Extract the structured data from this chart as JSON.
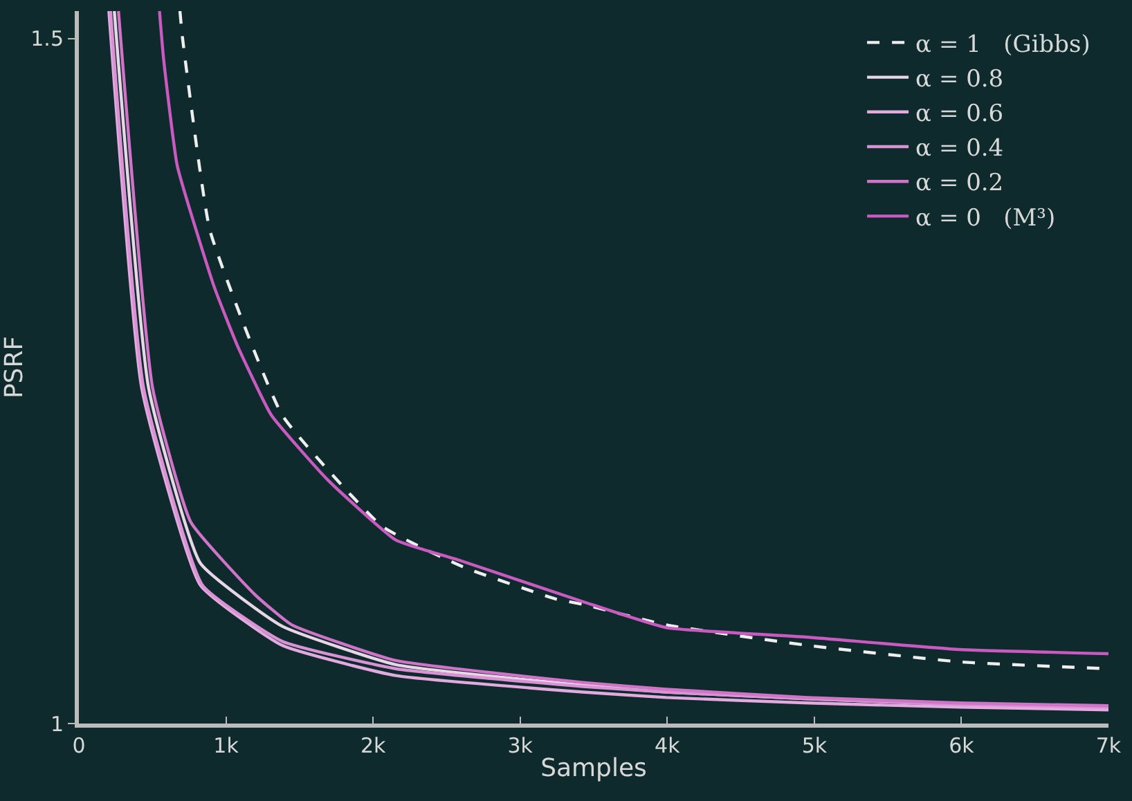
{
  "chart_data": {
    "type": "line",
    "xlabel": "Samples",
    "ylabel": "PSRF",
    "xlim": [
      0,
      7000
    ],
    "ylim": [
      1,
      1.52
    ],
    "xticks": [
      0,
      {
        "value": 1000,
        "label": "1k"
      },
      {
        "value": 2000,
        "label": "2k"
      },
      {
        "value": 3000,
        "label": "3k"
      },
      {
        "value": 4000,
        "label": "4k"
      },
      {
        "value": 5000,
        "label": "5k"
      },
      {
        "value": 6000,
        "label": "6k"
      },
      {
        "value": 7000,
        "label": "7k"
      }
    ],
    "yticks": [
      1,
      1.5
    ],
    "grid": false,
    "legend": "top right",
    "line_style": "solid",
    "series": [
      {
        "name": "α = 1   (Gibbs)",
        "color": "#eeeeee",
        "line_style": "dashed",
        "x": [
          687,
          705,
          891,
          1383,
          2061,
          2618,
          3240,
          3426,
          3993,
          4958,
          5989,
          7000
        ],
        "values": [
          1.52,
          1.5,
          1.36,
          1.225,
          1.144,
          1.114,
          1.091,
          1.087,
          1.072,
          1.057,
          1.045,
          1.04
        ]
      },
      {
        "name": "α = 0.8",
        "color": "#e6d6e6",
        "x": [
          241,
          474,
          826,
          1383,
          2154,
          3426,
          3993,
          4958,
          5989,
          7000
        ],
        "values": [
          1.52,
          1.245,
          1.117,
          1.071,
          1.043,
          1.028,
          1.023,
          1.018,
          1.014,
          1.012
        ]
      },
      {
        "name": "α = 0.6",
        "color": "#e2aade",
        "x": [
          204,
          427,
          826,
          1383,
          2154,
          3426,
          3993,
          4958,
          5989,
          7000
        ],
        "values": [
          1.52,
          1.245,
          1.101,
          1.057,
          1.035,
          1.023,
          1.019,
          1.015,
          1.012,
          1.01
        ]
      },
      {
        "name": "α = 0.4",
        "color": "#d992d4",
        "x": [
          215,
          440,
          840,
          1383,
          2154,
          3426,
          3993,
          4958,
          5989,
          7000
        ],
        "values": [
          1.52,
          1.245,
          1.101,
          1.06,
          1.04,
          1.027,
          1.023,
          1.018,
          1.014,
          1.012
        ]
      },
      {
        "name": "α = 0.2",
        "color": "#d074c8",
        "x": [
          269,
          501,
          761,
          1198,
          1448,
          2154,
          3426,
          3993,
          4958,
          5989,
          7000
        ],
        "values": [
          1.52,
          1.245,
          1.147,
          1.094,
          1.072,
          1.046,
          1.03,
          1.025,
          1.019,
          1.015,
          1.013
        ]
      },
      {
        "name": "α = 0   (M³)",
        "color": "#c85ac0",
        "x": [
          548,
          576,
          669,
          919,
          1077,
          1309,
          1690,
          2154,
          2591,
          3426,
          3993,
          4958,
          5989,
          7000
        ],
        "values": [
          1.52,
          1.485,
          1.407,
          1.319,
          1.276,
          1.225,
          1.178,
          1.134,
          1.119,
          1.089,
          1.07,
          1.063,
          1.054,
          1.051
        ]
      }
    ]
  }
}
